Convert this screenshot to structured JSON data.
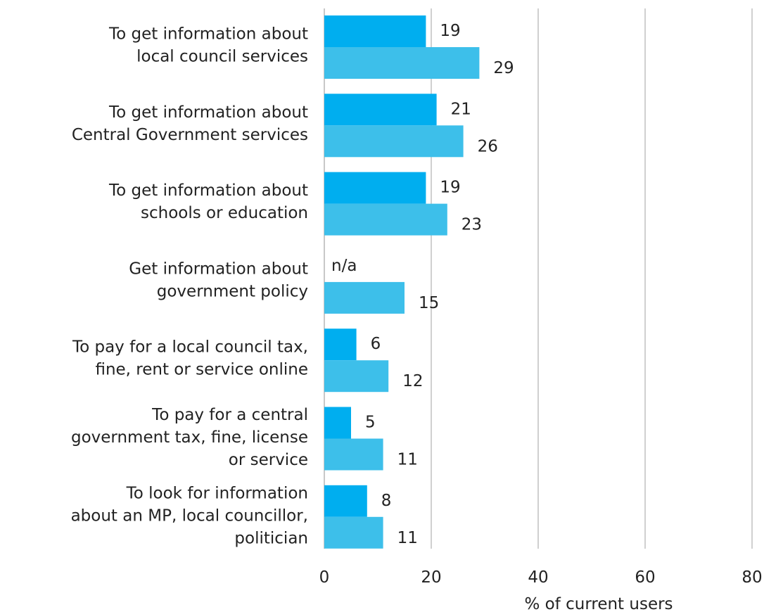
{
  "chart_data": {
    "type": "bar",
    "orientation": "horizontal",
    "title": "",
    "xlabel": "% of current users",
    "ylabel": "",
    "xlim": [
      0,
      80
    ],
    "x_ticks": [
      0,
      20,
      40,
      60,
      80
    ],
    "grid": "vertical",
    "legend": "none",
    "categories": [
      [
        "To get information about",
        "local council services"
      ],
      [
        "To get information about",
        "Central Government services"
      ],
      [
        "To get information about",
        "schools or education"
      ],
      [
        "Get information about",
        "government policy"
      ],
      [
        "To pay for a local council tax,",
        "fine, rent or service online"
      ],
      [
        "To pay for a central",
        "government tax, fine, license",
        "or service"
      ],
      [
        "To look for information",
        "about an MP, local councillor,",
        "politician"
      ]
    ],
    "series": [
      {
        "color": "#00aeef",
        "values": [
          19,
          21,
          19,
          null,
          6,
          5,
          8
        ],
        "labels": [
          "19",
          "21",
          "19",
          "n/a",
          "6",
          "5",
          "8"
        ]
      },
      {
        "color": "#3dbfea",
        "values": [
          29,
          26,
          23,
          15,
          12,
          11,
          11
        ],
        "labels": [
          "29",
          "26",
          "23",
          "15",
          "12",
          "11",
          "11"
        ]
      }
    ]
  }
}
